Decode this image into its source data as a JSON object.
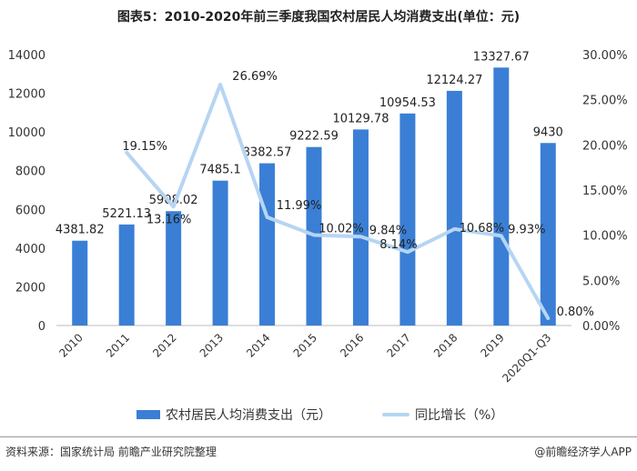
{
  "title": "图表5：2010-2020年前三季度我国农村居民人均消费支出(单位：元)",
  "chart_data": {
    "type": "bar+line",
    "categories": [
      "2010",
      "2011",
      "2012",
      "2013",
      "2014",
      "2015",
      "2016",
      "2017",
      "2018",
      "2019",
      "2020Q1-Q3"
    ],
    "series": [
      {
        "name": "农村居民人均消费支出（元）",
        "type": "bar",
        "axis": "left",
        "values": [
          4381.82,
          5221.13,
          5908.02,
          7485.1,
          8382.57,
          9222.59,
          10129.78,
          10954.53,
          12124.27,
          13327.67,
          9430
        ],
        "labels": [
          "4381.82",
          "5221.13",
          "5908.02",
          "7485.1",
          "8382.57",
          "9222.59",
          "10129.78",
          "10954.53",
          "12124.27",
          "13327.67",
          "9430"
        ]
      },
      {
        "name": "同比增长（%）",
        "type": "line",
        "axis": "right",
        "values": [
          null,
          19.15,
          13.16,
          26.69,
          11.99,
          10.02,
          9.84,
          8.14,
          10.68,
          9.93,
          0.8
        ],
        "labels": [
          "",
          "19.15%",
          "13.16%",
          "26.69%",
          "11.99%",
          "10.02%",
          "9.84%",
          "8.14%",
          "10.68%",
          "9.93%",
          "0.80%"
        ]
      }
    ],
    "y_left": {
      "min": 0,
      "max": 14000,
      "ticks": [
        "0",
        "2000",
        "4000",
        "6000",
        "8000",
        "10000",
        "12000",
        "14000"
      ]
    },
    "y_right": {
      "min": 0,
      "max": 30,
      "ticks": [
        "0.00%",
        "5.00%",
        "10.00%",
        "15.00%",
        "20.00%",
        "25.00%",
        "30.00%"
      ]
    },
    "colors": {
      "bar": "#3a7fd5",
      "line": "#b6d5f3"
    },
    "grid": false,
    "legend_position": "bottom"
  },
  "legend": {
    "bar_label": "农村居民人均消费支出（元）",
    "line_label": "同比增长（%）"
  },
  "footer": {
    "source": "资料来源：国家统计局 前瞻产业研究院整理",
    "brand": "@前瞻经济学人APP"
  }
}
